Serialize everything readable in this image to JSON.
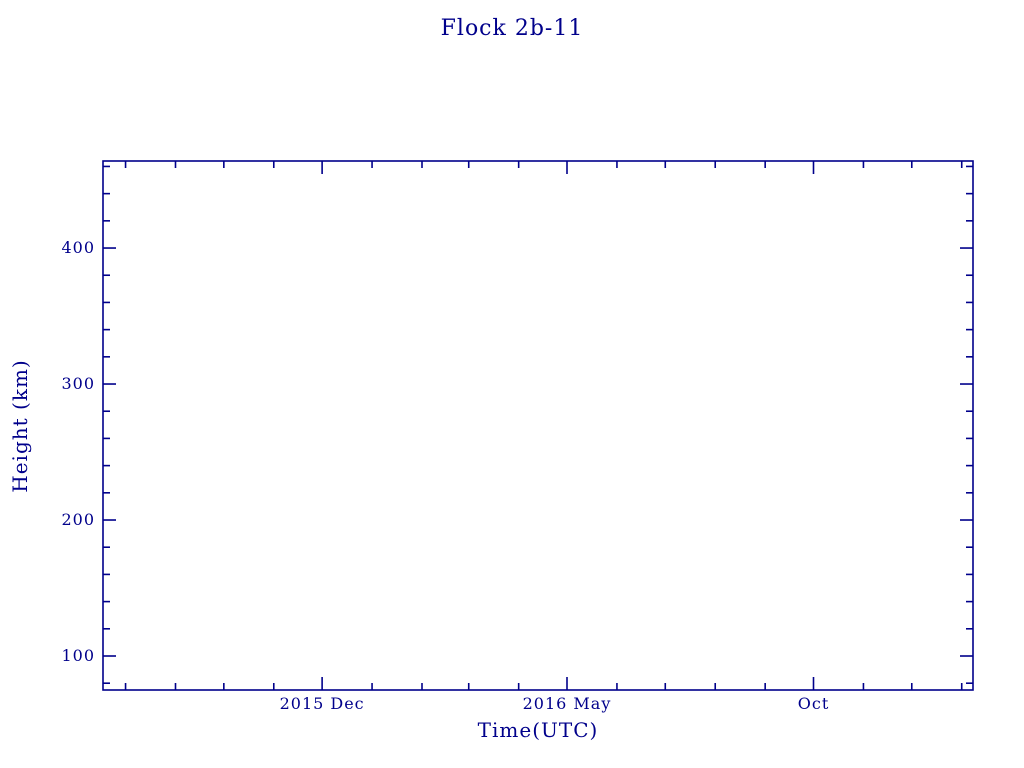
{
  "chart_data": {
    "type": "scatter",
    "title": "Flock 2b-11",
    "xlabel": "Time(UTC)",
    "ylabel": "Height (km)",
    "series": [],
    "grid": false,
    "legend": false,
    "background": "#ffffff",
    "axis_color": "#00008b",
    "tick_direction": "in",
    "x_axis": {
      "unit": "date",
      "min": "2015-07-18",
      "max": "2017-01-08",
      "major_ticks": [
        {
          "value": "2015-12-01",
          "label": "2015 Dec"
        },
        {
          "value": "2016-05-01",
          "label": "2016 May"
        },
        {
          "value": "2016-10-01",
          "label": "Oct"
        }
      ],
      "minor_ticks": [
        "2015-08-01",
        "2015-09-01",
        "2015-10-01",
        "2015-11-01",
        "2016-01-01",
        "2016-02-01",
        "2016-03-01",
        "2016-04-01",
        "2016-06-01",
        "2016-07-01",
        "2016-08-01",
        "2016-09-01",
        "2016-11-01",
        "2016-12-01",
        "2017-01-01"
      ]
    },
    "y_axis": {
      "min": 75,
      "max": 464,
      "major_ticks": [
        {
          "value": 100,
          "label": "100"
        },
        {
          "value": 200,
          "label": "200"
        },
        {
          "value": 300,
          "label": "300"
        },
        {
          "value": 400,
          "label": "400"
        }
      ],
      "minor_ticks": [
        80,
        120,
        140,
        160,
        180,
        220,
        240,
        260,
        280,
        320,
        340,
        360,
        380,
        420,
        440,
        460
      ]
    }
  }
}
